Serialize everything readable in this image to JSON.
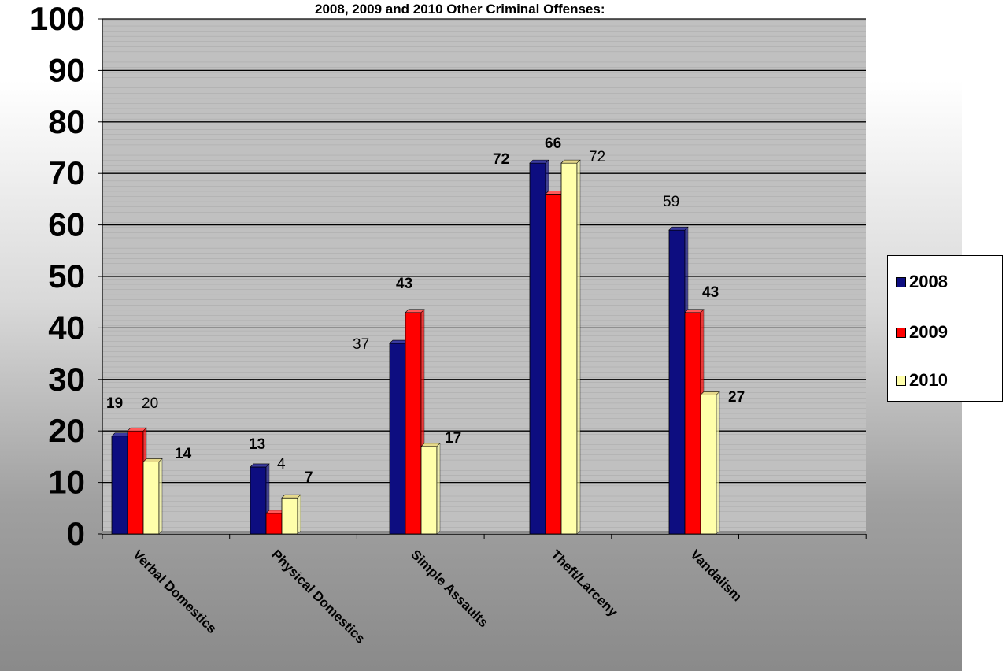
{
  "chart_data": {
    "type": "bar",
    "title": "2008, 2009 and 2010 Other Criminal Offenses:",
    "xlabel": "",
    "ylabel": "",
    "ylim": [
      0,
      100
    ],
    "y_ticks": [
      "0",
      "10",
      "20",
      "30",
      "40",
      "50",
      "60",
      "70",
      "80",
      "90",
      "100"
    ],
    "categories": [
      "Verbal Domestics",
      "Physical Domestics",
      "Simple Assaults",
      "Theft/Larceny",
      "Vandalism"
    ],
    "series": [
      {
        "name": "2008",
        "color": "#0d0d80",
        "values": [
          19,
          13,
          37,
          72,
          59
        ]
      },
      {
        "name": "2009",
        "color": "#ff0000",
        "values": [
          20,
          4,
          43,
          66,
          43
        ]
      },
      {
        "name": "2010",
        "color": "#ffffaa",
        "values": [
          14,
          7,
          17,
          72,
          27
        ]
      }
    ],
    "data_labels": [
      [
        "19",
        "13",
        "37",
        "72",
        "59"
      ],
      [
        "20",
        "4",
        "43",
        "66",
        "43"
      ],
      [
        "14",
        "7",
        "17",
        "72",
        "27"
      ]
    ],
    "grid": true,
    "legend": "right"
  }
}
